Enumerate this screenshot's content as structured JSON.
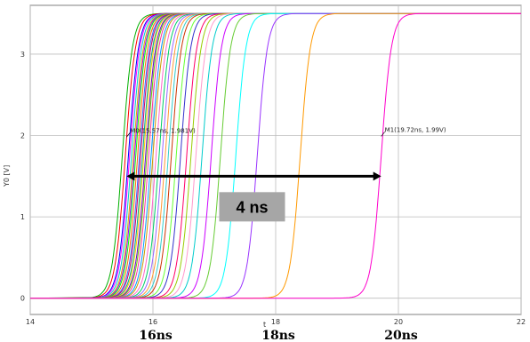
{
  "chart_data": {
    "type": "line",
    "title": "",
    "xlabel": "t",
    "ylabel": "Y0 [V]",
    "xlim": [
      14,
      22
    ],
    "ylim": [
      -0.2,
      3.6
    ],
    "x_ticks": [
      "14",
      "16",
      "18",
      "20",
      "22"
    ],
    "y_ticks": [
      "0",
      "1",
      "2",
      "3"
    ],
    "grid": true,
    "legend": "none",
    "series_note_colors": [
      "#00c000",
      "#66cc00",
      "#e0c000",
      "#ff8800",
      "#ff0000",
      "#ff00ff",
      "#9900ff",
      "#0000ff",
      "#00aaff",
      "#00cccc",
      "#33cc99",
      "#999900",
      "#ff66cc",
      "#cc6600",
      "#6633ff",
      "#00ff66"
    ],
    "series_crossings_ns": [
      15.5,
      15.55,
      15.6,
      15.62,
      15.65,
      15.68,
      15.7,
      15.72,
      15.75,
      15.78,
      15.8,
      15.83,
      15.85,
      15.88,
      15.9,
      15.93,
      15.97,
      16.0,
      16.05,
      16.1,
      16.15,
      16.2,
      16.25,
      16.3,
      16.38,
      16.45,
      16.55,
      16.62,
      16.7,
      16.8,
      16.95,
      17.1,
      17.35,
      17.7,
      18.4,
      19.72
    ],
    "series_colors": [
      "#00b000",
      "#ff0000",
      "#0000ff",
      "#ff00ff",
      "#00cccc",
      "#e0a000",
      "#9900ff",
      "#00ff00",
      "#ff6600",
      "#3366ff",
      "#cc0066",
      "#00aa88",
      "#ffcc00",
      "#6600cc",
      "#66cc00",
      "#ff3399",
      "#0099ff",
      "#cc9900",
      "#ff66cc",
      "#00cc66",
      "#9966ff",
      "#ff9933",
      "#33cccc",
      "#cc3300",
      "#66ff33",
      "#3333cc",
      "#ff0066",
      "#99cc00",
      "#ff99cc",
      "#00cccc",
      "#cc00ff",
      "#66cc33",
      "#00ffff",
      "#9933ff",
      "#ff9900",
      "#ff00cc"
    ],
    "low_level_v": 0,
    "high_level_v": 3.5,
    "markers": [
      {
        "label": "M0(15.57ns, 1.981V)",
        "x": 15.57,
        "y": 1.981
      },
      {
        "label": "M1(19.72ns, 1.99V)",
        "x": 19.72,
        "y": 1.99
      }
    ],
    "annotation": {
      "text": "4 ns",
      "arrow_from_ns": 15.57,
      "arrow_to_ns": 19.72,
      "arrow_y_v": 1.5
    },
    "overlay_ticks": [
      "16ns",
      "18ns",
      "20ns"
    ],
    "overlay_tick_x": [
      16,
      18,
      20
    ]
  }
}
